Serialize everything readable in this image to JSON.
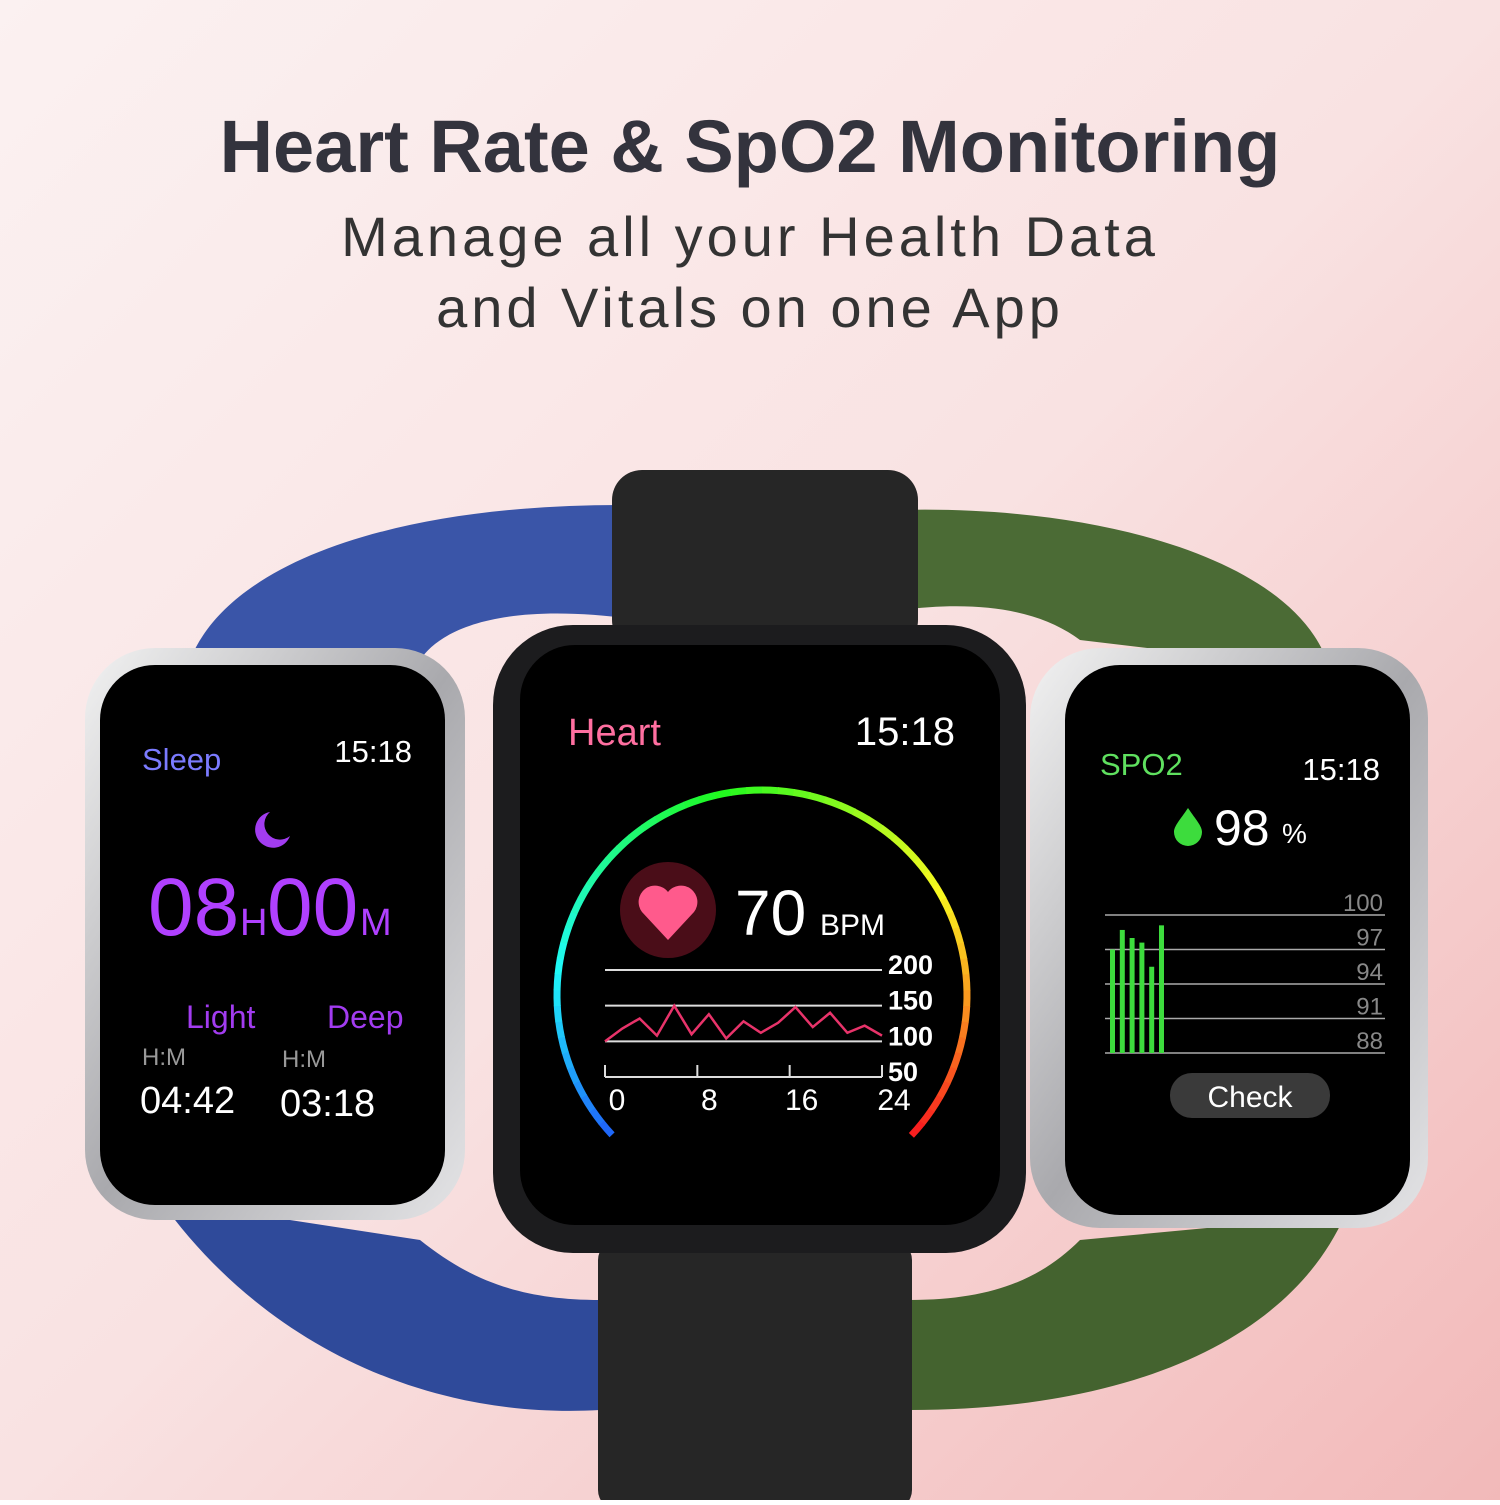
{
  "header": {
    "title": "Heart Rate & SpO2 Monitoring",
    "subtitle_lines": [
      "Manage all your Health Data",
      "and Vitals on one App"
    ]
  },
  "sleep_watch": {
    "label": "Sleep",
    "time": "15:18",
    "hours": "08",
    "hours_unit": "H",
    "minutes": "00",
    "minutes_unit": "M",
    "light_label": "Light",
    "light_unit": "H:M",
    "light_value": "04:42",
    "deep_label": "Deep",
    "deep_unit": "H:M",
    "deep_value": "03:18"
  },
  "heart_watch": {
    "label": "Heart",
    "time": "15:18",
    "bpm": 70,
    "bpm_unit": "BPM",
    "chart": {
      "type": "line",
      "x": [
        0,
        1.5,
        3,
        4.5,
        6,
        7.5,
        9,
        10.5,
        12,
        13.5,
        15,
        16.5,
        18,
        19.5,
        21,
        22.5,
        24
      ],
      "values": [
        100,
        118,
        132,
        108,
        150,
        110,
        138,
        104,
        128,
        112,
        126,
        148,
        120,
        140,
        112,
        122,
        108
      ],
      "xlim": [
        0,
        24
      ],
      "xticks": [
        0,
        8,
        16,
        24
      ],
      "ylim": [
        50,
        200
      ],
      "yticks": [
        200,
        150,
        100,
        50
      ],
      "color": "#e8336a"
    }
  },
  "spo2_watch": {
    "label": "SPO2",
    "time": "15:18",
    "value": 98,
    "unit": "%",
    "chart": {
      "type": "bar",
      "values": [
        97,
        98.7,
        98,
        97.6,
        95.5,
        99.1
      ],
      "ylim": [
        88,
        100
      ],
      "yticks": [
        100,
        97,
        94,
        91,
        88
      ],
      "color": "#3ddc3d"
    },
    "button": "Check"
  }
}
